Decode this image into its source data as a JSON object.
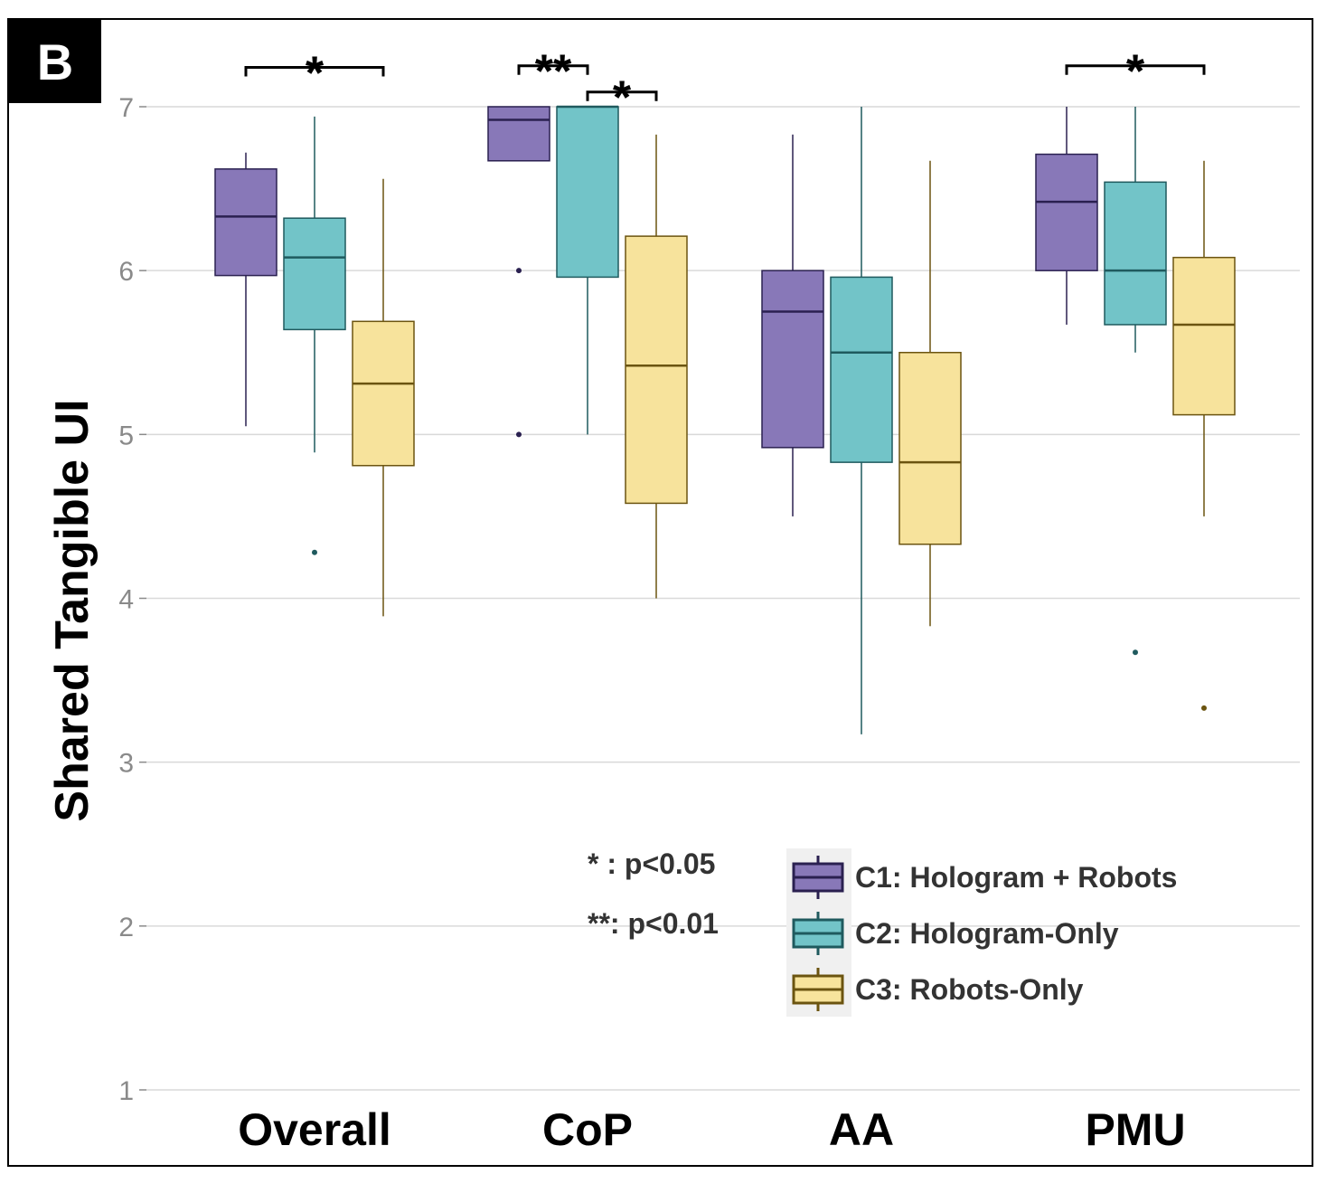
{
  "chart_data": {
    "type": "boxplot",
    "panel_label": "B",
    "ylabel": "Shared Tangible UI",
    "xlabel": "",
    "ylim": [
      1,
      7
    ],
    "yticks": [
      1,
      2,
      3,
      4,
      5,
      6,
      7
    ],
    "grid": true,
    "legend_position": "bottom-right",
    "categories": [
      "Overall",
      "CoP",
      "AA",
      "PMU"
    ],
    "series": [
      {
        "name": "C1: Hologram + Robots",
        "fill": "#8878b8",
        "stroke": "#2a2050",
        "boxes": [
          {
            "whisker_low": 5.05,
            "q1": 5.97,
            "median": 6.33,
            "q3": 6.62,
            "whisker_high": 6.72,
            "outliers": []
          },
          {
            "whisker_low": 6.67,
            "q1": 6.67,
            "median": 6.92,
            "q3": 7.0,
            "whisker_high": 7.0,
            "outliers": [
              6.0,
              5.0
            ]
          },
          {
            "whisker_low": 4.5,
            "q1": 4.92,
            "median": 5.75,
            "q3": 6.0,
            "whisker_high": 6.83,
            "outliers": []
          },
          {
            "whisker_low": 5.67,
            "q1": 6.0,
            "median": 6.42,
            "q3": 6.71,
            "whisker_high": 7.0,
            "outliers": []
          }
        ]
      },
      {
        "name": "C2: Hologram-Only",
        "fill": "#72c4c8",
        "stroke": "#1f5a5e",
        "boxes": [
          {
            "whisker_low": 4.89,
            "q1": 5.64,
            "median": 6.08,
            "q3": 6.32,
            "whisker_high": 6.94,
            "outliers": [
              4.28
            ]
          },
          {
            "whisker_low": 5.0,
            "q1": 5.96,
            "median": 7.0,
            "q3": 7.0,
            "whisker_high": 7.0,
            "outliers": []
          },
          {
            "whisker_low": 3.17,
            "q1": 4.83,
            "median": 5.5,
            "q3": 5.96,
            "whisker_high": 7.0,
            "outliers": []
          },
          {
            "whisker_low": 5.5,
            "q1": 5.67,
            "median": 6.0,
            "q3": 6.54,
            "whisker_high": 7.0,
            "outliers": [
              3.67
            ]
          }
        ]
      },
      {
        "name": "C3: Robots-Only",
        "fill": "#f7e39c",
        "stroke": "#6b5410",
        "boxes": [
          {
            "whisker_low": 3.89,
            "q1": 4.81,
            "median": 5.31,
            "q3": 5.69,
            "whisker_high": 6.56,
            "outliers": []
          },
          {
            "whisker_low": 4.0,
            "q1": 4.58,
            "median": 5.42,
            "q3": 6.21,
            "whisker_high": 6.83,
            "outliers": []
          },
          {
            "whisker_low": 3.83,
            "q1": 4.33,
            "median": 4.83,
            "q3": 5.5,
            "whisker_high": 6.67,
            "outliers": []
          },
          {
            "whisker_low": 4.5,
            "q1": 5.12,
            "median": 5.67,
            "q3": 6.08,
            "whisker_high": 6.67,
            "outliers": [
              3.33
            ]
          }
        ]
      }
    ],
    "significance": [
      {
        "category": "Overall",
        "from_series": 0,
        "to_series": 2,
        "label": "*",
        "level": 7.24
      },
      {
        "category": "CoP",
        "from_series": 0,
        "to_series": 1,
        "label": "**",
        "level": 7.25
      },
      {
        "category": "CoP",
        "from_series": 1,
        "to_series": 2,
        "label": "*",
        "level": 7.09
      },
      {
        "category": "PMU",
        "from_series": 0,
        "to_series": 2,
        "label": "*",
        "level": 7.25
      }
    ],
    "p_notes": [
      {
        "stars": "*",
        "text": " : p<0.05"
      },
      {
        "stars": "**",
        "text": ": p<0.01"
      }
    ]
  }
}
